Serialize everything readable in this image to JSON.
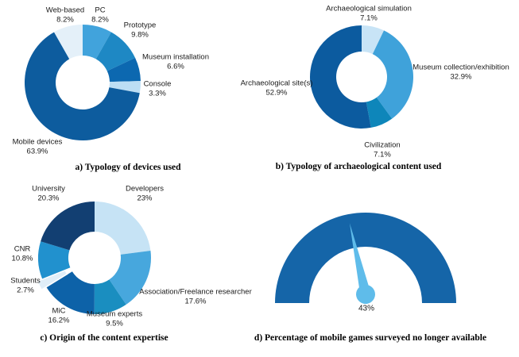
{
  "figure": {
    "background": "#ffffff"
  },
  "chart_data": [
    {
      "id": "devices",
      "type": "donut",
      "caption": "a) Typology of devices used",
      "start_angle": 0,
      "direction": "clockwise",
      "legend_position": "around",
      "slices": [
        {
          "label": "PC",
          "value": 8.2,
          "value_label": "8.2%",
          "color": "#41A3DC"
        },
        {
          "label": "Prototype",
          "value": 9.8,
          "value_label": "9.8%",
          "color": "#1E88C4"
        },
        {
          "label": "Museum installation",
          "value": 6.6,
          "value_label": "6.6%",
          "color": "#0C68B0"
        },
        {
          "label": "Console",
          "value": 3.3,
          "value_label": "3.3%",
          "color": "#BCDEF4"
        },
        {
          "label": "Mobile devices",
          "value": 63.9,
          "value_label": "63.9%",
          "color": "#0D5C9E"
        },
        {
          "label": "Web-based",
          "value": 8.2,
          "value_label": "8.2%",
          "color": "#E4F0F9"
        }
      ]
    },
    {
      "id": "content",
      "type": "donut",
      "caption": "b) Typology of archaeological content used",
      "start_angle": 0,
      "direction": "clockwise",
      "legend_position": "around",
      "slices": [
        {
          "label": "Archaeological simulation",
          "value": 7.1,
          "value_label": "7.1%",
          "color": "#C8E4F6"
        },
        {
          "label": "Museum collection/exhibition",
          "value": 32.9,
          "value_label": "32.9%",
          "color": "#3FA2DA"
        },
        {
          "label": "Civilization",
          "value": 7.1,
          "value_label": "7.1%",
          "color": "#0E86BA"
        },
        {
          "label": "Archaeological site(s)",
          "value": 52.9,
          "value_label": "52.9%",
          "color": "#0C5B9F"
        }
      ]
    },
    {
      "id": "expertise",
      "type": "donut",
      "caption": "c) Origin of the content expertise",
      "start_angle": 0,
      "direction": "clockwise",
      "legend_position": "around",
      "slices": [
        {
          "label": "Developers",
          "value": 23,
          "value_label": "23%",
          "color": "#C6E3F5"
        },
        {
          "label": "Association/Freelance researcher",
          "value": 17.6,
          "value_label": "17.6%",
          "color": "#47A7DD"
        },
        {
          "label": "Museum experts",
          "value": 9.5,
          "value_label": "9.5%",
          "color": "#1A8EC0"
        },
        {
          "label": "MiC",
          "value": 16.2,
          "value_label": "16.2%",
          "color": "#0D62A8"
        },
        {
          "label": "Students",
          "value": 2.7,
          "value_label": "2.7%",
          "color": "#E0EEF8",
          "explode": 7
        },
        {
          "label": "CNR",
          "value": 10.8,
          "value_label": "10.8%",
          "color": "#2191CE"
        },
        {
          "label": "University",
          "value": 20.3,
          "value_label": "20.3%",
          "color": "#123F72"
        }
      ]
    },
    {
      "id": "availability",
      "type": "gauge",
      "caption": "d) Percentage of mobile games surveyed no longer available",
      "min": 0,
      "max": 100,
      "value": 43,
      "value_label": "43%",
      "arc_color": "#1565A8",
      "needle_color": "#5FBCEA"
    }
  ]
}
